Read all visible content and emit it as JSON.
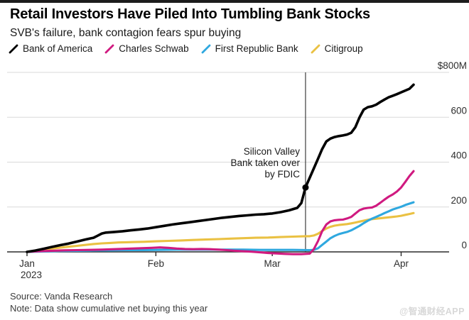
{
  "header": {
    "title": "Retail Investors Have Piled Into Tumbling Bank Stocks",
    "subtitle": "SVB's failure, bank contagion fears spur buying"
  },
  "footer": {
    "source": "Source: Vanda Research",
    "note": "Note: Data show cumulative net buying this year",
    "watermark": "@智通财经APP"
  },
  "chart_data": {
    "type": "line",
    "title": "Retail Investors Have Piled Into Tumbling Bank Stocks",
    "subtitle": "SVB's failure, bank contagion fears spur buying",
    "unit": "USD millions, cumulative net buying",
    "grid": "horizontal",
    "legend_position": "top",
    "colors": {
      "grid": "#d9d9d9",
      "axis": "#2b2b2b",
      "event_line": "#2c2c2c",
      "label_text": "#2e2e2e"
    },
    "y_axis": {
      "range": [
        0,
        800
      ],
      "ticks": [
        {
          "label": "$800M",
          "value": 800
        },
        {
          "label": "600",
          "value": 600
        },
        {
          "label": "400",
          "value": 400
        },
        {
          "label": "200",
          "value": 200
        },
        {
          "label": "0",
          "value": 0
        }
      ]
    },
    "x_axis": {
      "domain_days": [
        0,
        93
      ],
      "ticks": [
        {
          "label": "Jan",
          "sublabel": "2023",
          "day": 0
        },
        {
          "label": "Feb",
          "day": 31
        },
        {
          "label": "Mar",
          "day": 59
        },
        {
          "label": "Apr",
          "day": 90
        }
      ]
    },
    "annotation": {
      "text": "Silicon Valley\nBank taken over\nby FDIC",
      "event_day": 67,
      "marker_series": "Bank of America",
      "marker_value": 287
    },
    "series": [
      {
        "name": "Bank of America",
        "color": "#000000",
        "width": 3.6,
        "points": [
          [
            0,
            0
          ],
          [
            2,
            6
          ],
          [
            4,
            14
          ],
          [
            6,
            22
          ],
          [
            8,
            30
          ],
          [
            10,
            37
          ],
          [
            12,
            46
          ],
          [
            14,
            55
          ],
          [
            16,
            63
          ],
          [
            17,
            72
          ],
          [
            18,
            82
          ],
          [
            19,
            86
          ],
          [
            21,
            89
          ],
          [
            23,
            92
          ],
          [
            25,
            96
          ],
          [
            27,
            100
          ],
          [
            29,
            104
          ],
          [
            31,
            110
          ],
          [
            33,
            116
          ],
          [
            35,
            122
          ],
          [
            37,
            127
          ],
          [
            39,
            132
          ],
          [
            41,
            137
          ],
          [
            43,
            142
          ],
          [
            45,
            147
          ],
          [
            47,
            152
          ],
          [
            49,
            156
          ],
          [
            51,
            160
          ],
          [
            53,
            163
          ],
          [
            55,
            166
          ],
          [
            57,
            168
          ],
          [
            59,
            171
          ],
          [
            61,
            177
          ],
          [
            63,
            185
          ],
          [
            65,
            196
          ],
          [
            66,
            218
          ],
          [
            67,
            287
          ],
          [
            68,
            330
          ],
          [
            69,
            372
          ],
          [
            70,
            415
          ],
          [
            71,
            458
          ],
          [
            72,
            492
          ],
          [
            73,
            505
          ],
          [
            74,
            512
          ],
          [
            75,
            516
          ],
          [
            76,
            519
          ],
          [
            77,
            523
          ],
          [
            78,
            531
          ],
          [
            79,
            556
          ],
          [
            80,
            600
          ],
          [
            81,
            634
          ],
          [
            82,
            645
          ],
          [
            83,
            649
          ],
          [
            84,
            656
          ],
          [
            85,
            668
          ],
          [
            86,
            679
          ],
          [
            87,
            689
          ],
          [
            88,
            696
          ],
          [
            89,
            703
          ],
          [
            90,
            711
          ],
          [
            91,
            719
          ],
          [
            92,
            727
          ],
          [
            93,
            745
          ]
        ]
      },
      {
        "name": "Charles Schwab",
        "color": "#d01a80",
        "width": 3.1,
        "points": [
          [
            0,
            0
          ],
          [
            3,
            3
          ],
          [
            6,
            5
          ],
          [
            9,
            7
          ],
          [
            12,
            8
          ],
          [
            15,
            9
          ],
          [
            18,
            10
          ],
          [
            21,
            12
          ],
          [
            24,
            14
          ],
          [
            27,
            16
          ],
          [
            30,
            18
          ],
          [
            32,
            20
          ],
          [
            34,
            18
          ],
          [
            36,
            15
          ],
          [
            38,
            13
          ],
          [
            40,
            12
          ],
          [
            42,
            13
          ],
          [
            44,
            12
          ],
          [
            46,
            10
          ],
          [
            48,
            8
          ],
          [
            50,
            5
          ],
          [
            52,
            3
          ],
          [
            54,
            1
          ],
          [
            56,
            -2
          ],
          [
            58,
            -5
          ],
          [
            60,
            -7
          ],
          [
            62,
            -9
          ],
          [
            64,
            -10
          ],
          [
            66,
            -10
          ],
          [
            68,
            -8
          ],
          [
            69,
            12
          ],
          [
            70,
            48
          ],
          [
            71,
            92
          ],
          [
            72,
            122
          ],
          [
            73,
            136
          ],
          [
            74,
            141
          ],
          [
            75,
            143
          ],
          [
            76,
            144
          ],
          [
            77,
            149
          ],
          [
            78,
            156
          ],
          [
            79,
            171
          ],
          [
            80,
            186
          ],
          [
            81,
            193
          ],
          [
            82,
            196
          ],
          [
            83,
            198
          ],
          [
            84,
            206
          ],
          [
            85,
            219
          ],
          [
            86,
            233
          ],
          [
            87,
            246
          ],
          [
            88,
            256
          ],
          [
            89,
            269
          ],
          [
            90,
            287
          ],
          [
            91,
            312
          ],
          [
            92,
            338
          ],
          [
            93,
            360
          ]
        ]
      },
      {
        "name": "First Republic Bank",
        "color": "#2fa8df",
        "width": 3.1,
        "points": [
          [
            0,
            0
          ],
          [
            4,
            2
          ],
          [
            8,
            4
          ],
          [
            12,
            5
          ],
          [
            16,
            6
          ],
          [
            20,
            7
          ],
          [
            24,
            8
          ],
          [
            28,
            8
          ],
          [
            32,
            9
          ],
          [
            36,
            10
          ],
          [
            40,
            10
          ],
          [
            44,
            10
          ],
          [
            48,
            10
          ],
          [
            52,
            10
          ],
          [
            56,
            9
          ],
          [
            60,
            9
          ],
          [
            64,
            9
          ],
          [
            68,
            8
          ],
          [
            69,
            9
          ],
          [
            70,
            16
          ],
          [
            71,
            31
          ],
          [
            72,
            46
          ],
          [
            73,
            61
          ],
          [
            74,
            71
          ],
          [
            75,
            79
          ],
          [
            76,
            84
          ],
          [
            77,
            89
          ],
          [
            78,
            96
          ],
          [
            79,
            106
          ],
          [
            80,
            116
          ],
          [
            81,
            128
          ],
          [
            82,
            139
          ],
          [
            83,
            148
          ],
          [
            84,
            156
          ],
          [
            85,
            164
          ],
          [
            86,
            173
          ],
          [
            87,
            181
          ],
          [
            88,
            189
          ],
          [
            89,
            195
          ],
          [
            90,
            201
          ],
          [
            91,
            209
          ],
          [
            92,
            215
          ],
          [
            93,
            221
          ]
        ]
      },
      {
        "name": "Citigroup",
        "color": "#eac143",
        "width": 3.1,
        "points": [
          [
            0,
            0
          ],
          [
            2,
            5
          ],
          [
            4,
            10
          ],
          [
            6,
            15
          ],
          [
            8,
            19
          ],
          [
            10,
            23
          ],
          [
            12,
            27
          ],
          [
            14,
            31
          ],
          [
            16,
            35
          ],
          [
            18,
            38
          ],
          [
            20,
            40
          ],
          [
            22,
            42
          ],
          [
            24,
            43
          ],
          [
            26,
            44
          ],
          [
            28,
            45
          ],
          [
            31,
            47
          ],
          [
            34,
            49
          ],
          [
            37,
            51
          ],
          [
            40,
            53
          ],
          [
            43,
            55
          ],
          [
            46,
            57
          ],
          [
            49,
            59
          ],
          [
            52,
            61
          ],
          [
            55,
            63
          ],
          [
            58,
            64
          ],
          [
            61,
            66
          ],
          [
            64,
            68
          ],
          [
            67,
            70
          ],
          [
            68,
            70
          ],
          [
            69,
            73
          ],
          [
            70,
            81
          ],
          [
            71,
            93
          ],
          [
            72,
            104
          ],
          [
            73,
            112
          ],
          [
            74,
            117
          ],
          [
            75,
            120
          ],
          [
            76,
            122
          ],
          [
            77,
            124
          ],
          [
            78,
            127
          ],
          [
            79,
            131
          ],
          [
            80,
            135
          ],
          [
            81,
            139
          ],
          [
            82,
            143
          ],
          [
            83,
            146
          ],
          [
            84,
            148
          ],
          [
            85,
            150
          ],
          [
            86,
            152
          ],
          [
            87,
            154
          ],
          [
            88,
            156
          ],
          [
            89,
            158
          ],
          [
            90,
            161
          ],
          [
            91,
            165
          ],
          [
            92,
            169
          ],
          [
            93,
            173
          ]
        ]
      }
    ]
  }
}
